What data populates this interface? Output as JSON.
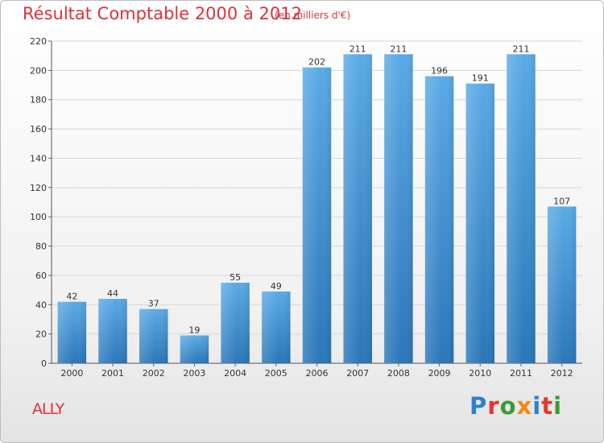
{
  "header": {
    "title": "Résultat Comptable 2000 à 2012",
    "subtitle": "(en milliers d'€)"
  },
  "footer": {
    "commune": "ALLY",
    "logo_text": "Proxiti"
  },
  "colors": {
    "title": "#e0303a",
    "bar_top": "#5aaae6",
    "bar_bottom": "#2a76b8",
    "logo_letters": [
      "#2f7fd0",
      "#e03a2e",
      "#3a9a3a",
      "#f28a10",
      "#2f7fd0",
      "#e03a2e",
      "#3a9a3a"
    ]
  },
  "chart_data": {
    "type": "bar",
    "title": "Résultat Comptable 2000 à 2012",
    "subtitle": "(en milliers d'€)",
    "categories": [
      "2000",
      "2001",
      "2002",
      "2003",
      "2004",
      "2005",
      "2006",
      "2007",
      "2008",
      "2009",
      "2010",
      "2011",
      "2012"
    ],
    "values": [
      42,
      44,
      37,
      19,
      55,
      49,
      202,
      211,
      211,
      196,
      191,
      211,
      107
    ],
    "ylim": [
      0,
      220
    ],
    "yticks": [
      0,
      20,
      40,
      60,
      80,
      100,
      120,
      140,
      160,
      180,
      200,
      220
    ],
    "grid": true,
    "legend": "none"
  }
}
